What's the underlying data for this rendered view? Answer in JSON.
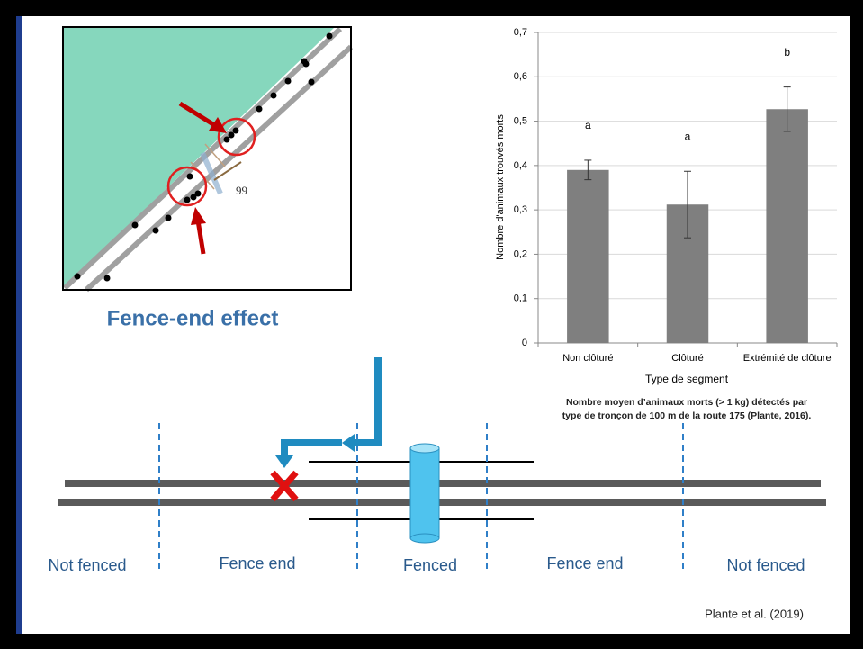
{
  "chart_data": {
    "type": "bar",
    "y_label": "Nombre d'animaux trouvés morts",
    "x_label": "Type de segment",
    "caption": [
      "Nombre moyen d’animaux morts (> 1 kg) détectés par",
      "type de tronçon de 100 m de la route 175 (Plante, 2016)."
    ],
    "categories": [
      "Non clôturé",
      "Clôturé",
      "Extrémité de clôture"
    ],
    "values": [
      0.39,
      0.312,
      0.527
    ],
    "errors": [
      0.022,
      0.075,
      0.05
    ],
    "annotations": [
      "a",
      "a",
      "b"
    ],
    "color": "#7f7f7f",
    "ylim": [
      0,
      0.7
    ],
    "yticks": [
      0,
      {
        "value": 0.1,
        "label": "0,1"
      },
      {
        "value": 0.2,
        "label": "0,2"
      },
      {
        "value": 0.3,
        "label": "0,3"
      },
      {
        "value": 0.4,
        "label": "0,4"
      },
      {
        "value": 0.5,
        "label": "0,5"
      },
      {
        "value": 0.6,
        "label": "0,6"
      },
      {
        "value": 0.7,
        "label": "0,7"
      }
    ],
    "grid": true
  },
  "slide": {
    "map_label": "99",
    "map_caption": "Fence-end effect",
    "zone_labels": [
      "Not fenced",
      "Fence end",
      "Fenced",
      "Fence end",
      "Not fenced"
    ],
    "citation": "Plante et al. (2019)"
  }
}
